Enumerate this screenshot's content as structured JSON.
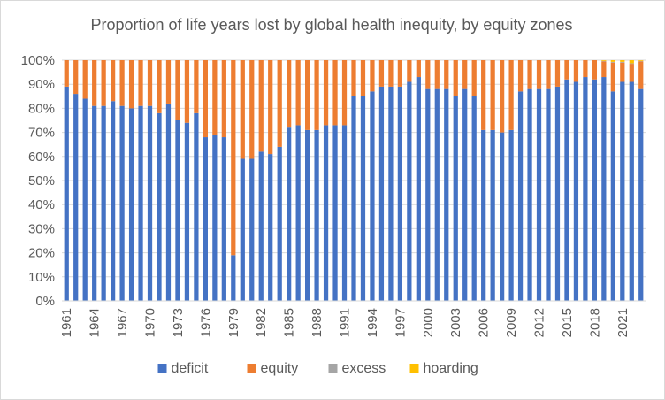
{
  "chart_data": {
    "type": "bar",
    "stacked": true,
    "percent_stacked": true,
    "title": "Proportion of life years lost by global health inequity, by equity zones",
    "xlabel": "",
    "ylabel": "",
    "ylim": [
      0,
      100
    ],
    "y_ticks": [
      "0%",
      "10%",
      "20%",
      "30%",
      "40%",
      "50%",
      "60%",
      "70%",
      "80%",
      "90%",
      "100%"
    ],
    "x_tick_labels": [
      "1961",
      "1964",
      "1967",
      "1970",
      "1973",
      "1976",
      "1979",
      "1982",
      "1985",
      "1988",
      "1991",
      "1994",
      "1997",
      "2000",
      "2003",
      "2006",
      "2009",
      "2012",
      "2015",
      "2018",
      "2021"
    ],
    "grid": true,
    "legend_position": "bottom",
    "categories": [
      "1961",
      "1962",
      "1963",
      "1964",
      "1965",
      "1966",
      "1967",
      "1968",
      "1969",
      "1970",
      "1971",
      "1972",
      "1973",
      "1974",
      "1975",
      "1976",
      "1977",
      "1978",
      "1979",
      "1980",
      "1981",
      "1982",
      "1983",
      "1984",
      "1985",
      "1986",
      "1987",
      "1988",
      "1989",
      "1990",
      "1991",
      "1992",
      "1993",
      "1994",
      "1995",
      "1996",
      "1997",
      "1998",
      "1999",
      "2000",
      "2001",
      "2002",
      "2003",
      "2004",
      "2005",
      "2006",
      "2007",
      "2008",
      "2009",
      "2010",
      "2011",
      "2012",
      "2013",
      "2014",
      "2015",
      "2016",
      "2017",
      "2018",
      "2019",
      "2020",
      "2021",
      "2022",
      "2023"
    ],
    "series": [
      {
        "name": "deficit",
        "color": "#4472c4",
        "values": [
          89,
          86,
          84,
          81,
          81,
          83,
          81,
          80,
          81,
          81,
          78,
          82,
          75,
          74,
          78,
          68,
          69,
          68,
          19,
          59,
          59,
          62,
          61,
          64,
          72,
          73,
          71,
          71,
          73,
          73,
          73,
          85,
          85,
          87,
          89,
          89,
          89,
          91,
          93,
          88,
          88,
          88,
          85,
          88,
          85,
          71,
          71,
          70,
          71,
          87,
          88,
          88,
          88,
          89,
          92,
          91,
          93,
          92,
          93,
          87,
          91,
          91,
          88
        ]
      },
      {
        "name": "equity",
        "color": "#ed7d31",
        "values": [
          11,
          14,
          16,
          19,
          19,
          17,
          19,
          20,
          19,
          19,
          22,
          18,
          25,
          26,
          22,
          32,
          31,
          32,
          81,
          41,
          41,
          38,
          39,
          36,
          28,
          27,
          29,
          29,
          27,
          27,
          27,
          15,
          15,
          13,
          11,
          11,
          11,
          9,
          7,
          12,
          12,
          12,
          15,
          12,
          15,
          29,
          29,
          30,
          29,
          13,
          12,
          12,
          12,
          11,
          8,
          9,
          7,
          8,
          6.5,
          12,
          8,
          7.5,
          11.5
        ]
      },
      {
        "name": "excess",
        "color": "#a5a5a5",
        "values": [
          0,
          0,
          0,
          0,
          0,
          0,
          0,
          0,
          0,
          0,
          0,
          0,
          0,
          0,
          0,
          0,
          0,
          0,
          0,
          0,
          0,
          0,
          0,
          0,
          0,
          0,
          0,
          0,
          0,
          0,
          0,
          0,
          0,
          0,
          0,
          0,
          0,
          0,
          0,
          0,
          0,
          0,
          0,
          0,
          0,
          0,
          0,
          0,
          0,
          0,
          0,
          0,
          0,
          0,
          0,
          0,
          0,
          0,
          0.2,
          0.3,
          0.3,
          0.2,
          0.2
        ]
      },
      {
        "name": "hoarding",
        "color": "#ffc000",
        "values": [
          0,
          0,
          0,
          0,
          0,
          0,
          0,
          0,
          0,
          0,
          0,
          0,
          0,
          0,
          0,
          0,
          0,
          0,
          0,
          0,
          0,
          0,
          0,
          0,
          0,
          0,
          0,
          0,
          0,
          0,
          0,
          0,
          0,
          0,
          0,
          0,
          0,
          0,
          0,
          0,
          0,
          0,
          0,
          0,
          0,
          0,
          0,
          0,
          0,
          0,
          0,
          0,
          0,
          0,
          0,
          0,
          0,
          0,
          0.3,
          0.7,
          0.7,
          1.3,
          0.3
        ]
      }
    ]
  }
}
